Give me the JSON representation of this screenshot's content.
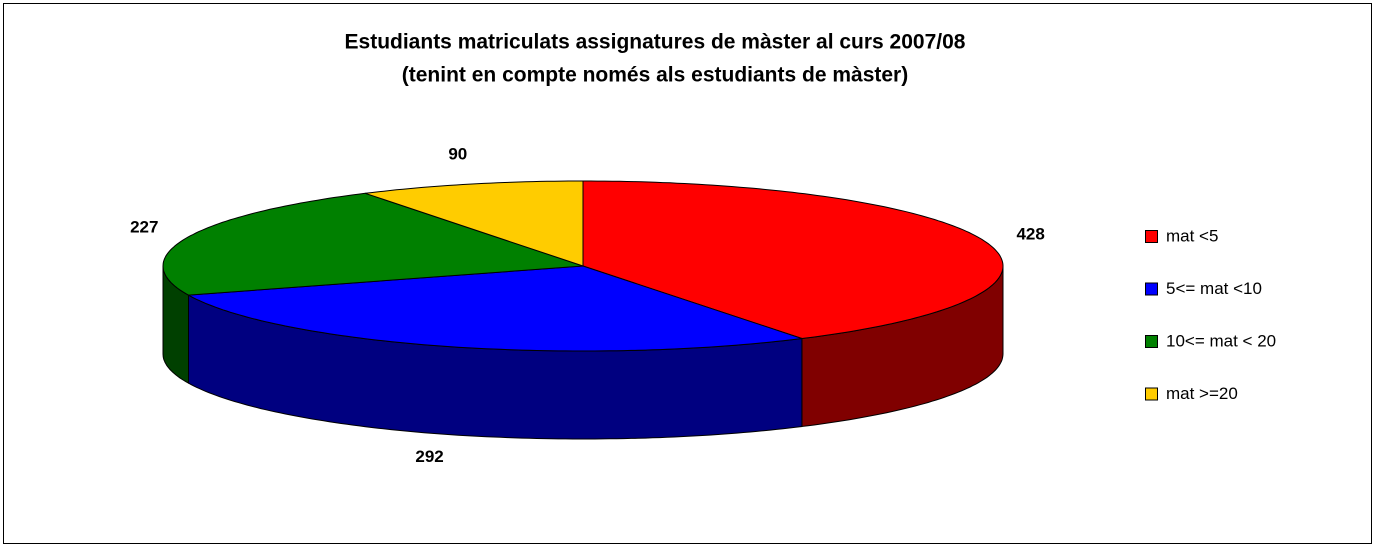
{
  "chart_data": {
    "type": "pie",
    "title": [
      "Estudiants matriculats assignatures de màster al curs 2007/08",
      "(tenint en compte només als estudiants de màster)"
    ],
    "categories": [
      "mat <5",
      "5<= mat <10",
      "10<= mat < 20",
      "mat >=20"
    ],
    "values": [
      428,
      292,
      227,
      90
    ],
    "colors": [
      "#ff0000",
      "#0000ff",
      "#008000",
      "#ffcc00"
    ],
    "legend": "right"
  }
}
